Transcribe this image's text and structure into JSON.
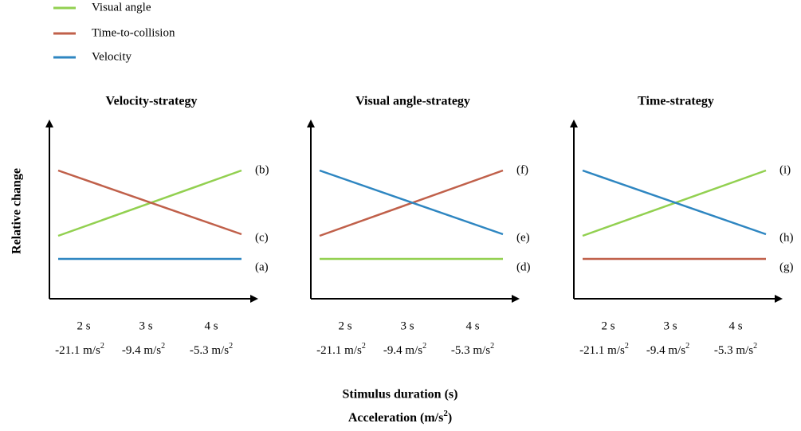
{
  "legend": [
    {
      "label": "Visual angle",
      "color": "#92d050"
    },
    {
      "label": "Time-to-collision",
      "color": "#c0604a"
    },
    {
      "label": "Velocity",
      "color": "#2e86c1"
    }
  ],
  "y_axis_label": "Relative change",
  "x_axis_label": "Stimulus duration (s)",
  "x_axis_label_2": {
    "text": "Acceleration (m/s",
    "sup": "2",
    "close": ")"
  },
  "durations": [
    "2 s",
    "3 s",
    "4 s"
  ],
  "accelerations": [
    {
      "text": "-21.1 m/s",
      "sup": "2"
    },
    {
      "text": "-9.4 m/s",
      "sup": "2"
    },
    {
      "text": "-5.3 m/s",
      "sup": "2"
    }
  ],
  "panels": [
    {
      "title": "Velocity-strategy",
      "labels": [
        "(b)",
        "(c)",
        "(a)"
      ]
    },
    {
      "title": "Visual angle-strategy",
      "labels": [
        "(f)",
        "(e)",
        "(d)"
      ]
    },
    {
      "title": "Time-strategy",
      "labels": [
        "(i)",
        "(h)",
        "(g)"
      ]
    }
  ]
}
